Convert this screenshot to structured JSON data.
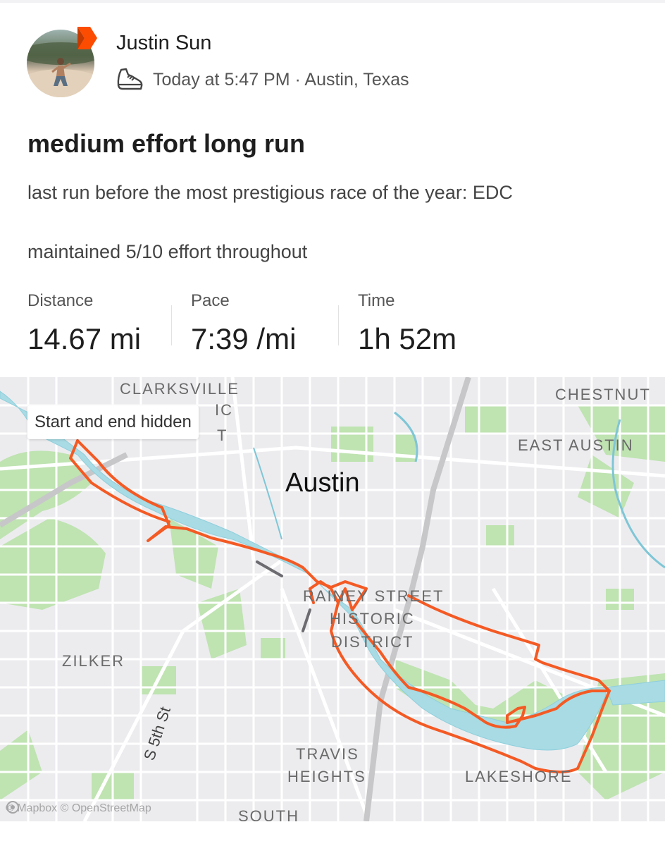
{
  "colors": {
    "brand_orange": "#fc4c02",
    "route": "#f45a24",
    "water": "#a8dbe4",
    "park": "#bfe3b1",
    "road": "#ffffff",
    "highway": "#c9c9c9"
  },
  "user": {
    "name": "Justin Sun",
    "avatar_icon": "profile-photo",
    "badge_icon": "subscriber-chevron-icon"
  },
  "activity": {
    "type_icon": "running-shoe-icon",
    "meta": "Today at 5:47 PM · Austin, Texas",
    "title": "medium effort long run",
    "description_lines": [
      "last run before the most prestigious race of the year: EDC",
      "maintained 5/10 effort throughout"
    ]
  },
  "stats": [
    {
      "label": "Distance",
      "value": "14.67 mi"
    },
    {
      "label": "Pace",
      "value": "7:39 /mi"
    },
    {
      "label": "Time",
      "value": "1h 52m"
    }
  ],
  "map": {
    "hidden_label": "Start and end hidden",
    "city_label": "Austin",
    "neighborhood_labels": {
      "clarksville": "CLARKSVILLE",
      "clarksville_2": "IC",
      "clarksville_3": "T",
      "chestnut": "CHESTNUT",
      "east_austin": "EAST AUSTIN",
      "rainey_1": "RAINEY STREET",
      "rainey_2": "HISTORIC",
      "rainey_3": "DISTRICT",
      "zilker": "ZILKER",
      "travis_1": "TRAVIS",
      "travis_2": "HEIGHTS",
      "lakeshore": "LAKESHORE",
      "south": "SOUTH"
    },
    "street_label": "S 5th St",
    "attribution": "© Mapbox © OpenStreetMap"
  }
}
